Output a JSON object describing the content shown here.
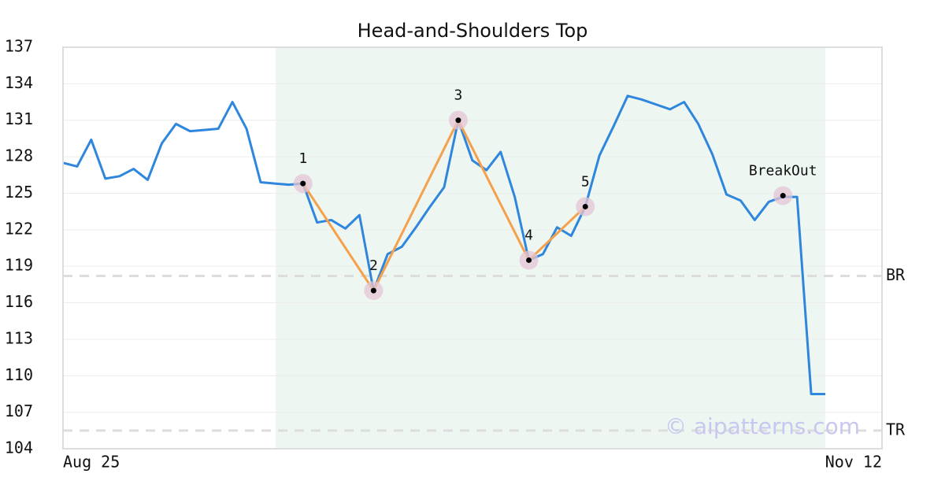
{
  "chart_data": {
    "type": "line",
    "title": "Head-and-Shoulders Top",
    "watermark": "© aipatterns.com",
    "categories": [
      "Aug 25",
      null,
      null,
      null,
      null,
      null,
      null,
      null,
      null,
      null,
      null,
      null,
      null,
      null,
      null,
      null,
      null,
      null,
      null,
      null,
      null,
      null,
      null,
      null,
      null,
      null,
      null,
      null,
      null,
      null,
      null,
      null,
      null,
      null,
      null,
      null,
      null,
      null,
      null,
      null,
      null,
      null,
      null,
      null,
      null,
      null,
      null,
      null,
      null,
      null,
      null,
      null,
      null,
      null,
      "Nov 12"
    ],
    "series": [
      {
        "color": "#2f86dd",
        "values": [
          127.5,
          127.2,
          129.4,
          126.2,
          126.4,
          127.0,
          126.1,
          129.1,
          130.7,
          130.1,
          130.2,
          130.3,
          132.5,
          130.3,
          125.9,
          125.8,
          125.7,
          125.8,
          122.6,
          122.8,
          122.1,
          123.2,
          117.0,
          120.0,
          120.6,
          122.2,
          123.9,
          125.5,
          131.0,
          127.7,
          126.9,
          128.4,
          124.7,
          119.5,
          120.0,
          122.2,
          121.5,
          123.9,
          128.1,
          130.5,
          133.0,
          132.7,
          132.3,
          131.9,
          132.5,
          130.7,
          128.2,
          124.9,
          124.4,
          122.8,
          124.3,
          124.7,
          124.7,
          108.5,
          108.5
        ]
      }
    ],
    "pattern": {
      "color": "#f5a04a",
      "values": [
        null,
        null,
        null,
        null,
        null,
        null,
        null,
        null,
        null,
        null,
        null,
        null,
        null,
        null,
        null,
        null,
        null,
        125.8,
        null,
        null,
        null,
        null,
        117.0,
        null,
        null,
        null,
        null,
        null,
        131.0,
        null,
        null,
        null,
        null,
        119.5,
        null,
        null,
        null,
        123.9,
        null,
        null,
        null,
        null,
        null,
        null,
        null,
        null,
        null,
        null,
        null,
        null,
        null,
        null,
        null,
        null,
        null
      ],
      "labels": [
        null,
        null,
        null,
        null,
        null,
        null,
        null,
        null,
        null,
        null,
        null,
        null,
        null,
        null,
        null,
        null,
        null,
        "1",
        null,
        null,
        null,
        null,
        "2",
        null,
        null,
        null,
        null,
        null,
        "3",
        null,
        null,
        null,
        null,
        "4",
        null,
        null,
        null,
        "5",
        null,
        null,
        null,
        null,
        null,
        null,
        null,
        null,
        null,
        null,
        null,
        null,
        null,
        null,
        null,
        null,
        null
      ]
    },
    "breakout": {
      "values": [
        null,
        null,
        null,
        null,
        null,
        null,
        null,
        null,
        null,
        null,
        null,
        null,
        null,
        null,
        null,
        null,
        null,
        null,
        null,
        null,
        null,
        null,
        null,
        null,
        null,
        null,
        null,
        null,
        null,
        null,
        null,
        null,
        null,
        null,
        null,
        null,
        null,
        null,
        null,
        null,
        null,
        null,
        null,
        null,
        null,
        null,
        null,
        null,
        null,
        null,
        null,
        124.8,
        null,
        null,
        null
      ],
      "labels": [
        null,
        null,
        null,
        null,
        null,
        null,
        null,
        null,
        null,
        null,
        null,
        null,
        null,
        null,
        null,
        null,
        null,
        null,
        null,
        null,
        null,
        null,
        null,
        null,
        null,
        null,
        null,
        null,
        null,
        null,
        null,
        null,
        null,
        null,
        null,
        null,
        null,
        null,
        null,
        null,
        null,
        null,
        null,
        null,
        null,
        null,
        null,
        null,
        null,
        null,
        null,
        "BreakOut",
        null,
        null,
        null
      ]
    },
    "levels": [
      {
        "label": "BR",
        "value": 118.2
      },
      {
        "label": "TR",
        "value": 105.5
      }
    ],
    "ylim": [
      104,
      137
    ],
    "yticks": [
      104,
      107,
      110,
      113,
      116,
      119,
      122,
      125,
      128,
      131,
      134,
      137
    ],
    "grid": true
  }
}
